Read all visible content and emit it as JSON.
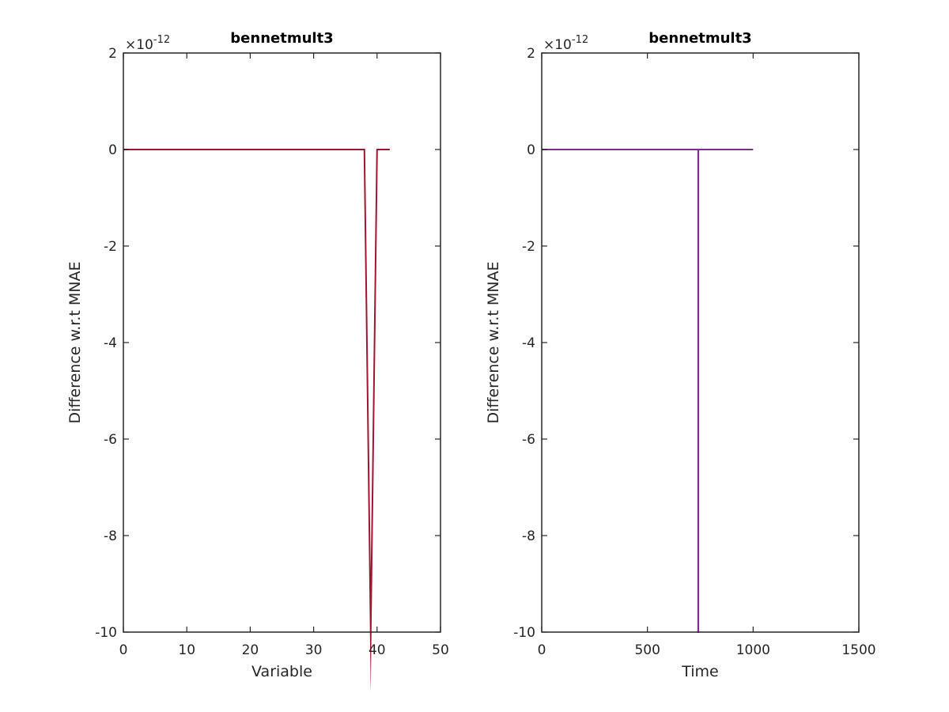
{
  "chart_data": [
    {
      "type": "line",
      "title": "bennetmult3",
      "xlabel": "Variable",
      "ylabel": "Difference w.r.t MNAE",
      "y_exponent_base": "×10",
      "y_exponent": "-12",
      "xlim": [
        0,
        50
      ],
      "ylim": [
        -10,
        2
      ],
      "xticks": [
        0,
        10,
        20,
        30,
        40,
        50
      ],
      "yticks": [
        -10,
        -8,
        -6,
        -4,
        -2,
        0,
        2
      ],
      "grid": false,
      "series": [
        {
          "color": "#A2142F",
          "x": [
            0,
            1,
            2,
            3,
            4,
            5,
            6,
            7,
            8,
            9,
            10,
            11,
            12,
            13,
            14,
            15,
            16,
            17,
            18,
            19,
            20,
            21,
            22,
            23,
            24,
            25,
            26,
            27,
            28,
            29,
            30,
            31,
            32,
            33,
            34,
            35,
            36,
            37,
            38,
            39,
            40,
            41,
            42
          ],
          "y": [
            0,
            0,
            0,
            0,
            0,
            0,
            0,
            0,
            0,
            0,
            0,
            0,
            0,
            0,
            0,
            0,
            0,
            0,
            0,
            0,
            0,
            0,
            0,
            0,
            0,
            0,
            0,
            0,
            0,
            0,
            0,
            0,
            0,
            0,
            0,
            0,
            0,
            0,
            0,
            -10,
            0,
            0,
            0
          ]
        }
      ]
    },
    {
      "type": "line",
      "title": "bennetmult3",
      "xlabel": "Time",
      "ylabel": "Difference w.r.t MNAE",
      "y_exponent_base": "×10",
      "y_exponent": "-12",
      "xlim": [
        0,
        1500
      ],
      "ylim": [
        -10,
        2
      ],
      "xticks": [
        0,
        500,
        1000,
        1500
      ],
      "yticks": [
        -10,
        -8,
        -6,
        -4,
        -2,
        0,
        2
      ],
      "grid": false,
      "series": [
        {
          "color": "#7E2F8E",
          "x": [
            0,
            740,
            740,
            741,
            741,
            1000
          ],
          "y": [
            0,
            0,
            -10,
            -10,
            0,
            0
          ]
        }
      ]
    }
  ]
}
